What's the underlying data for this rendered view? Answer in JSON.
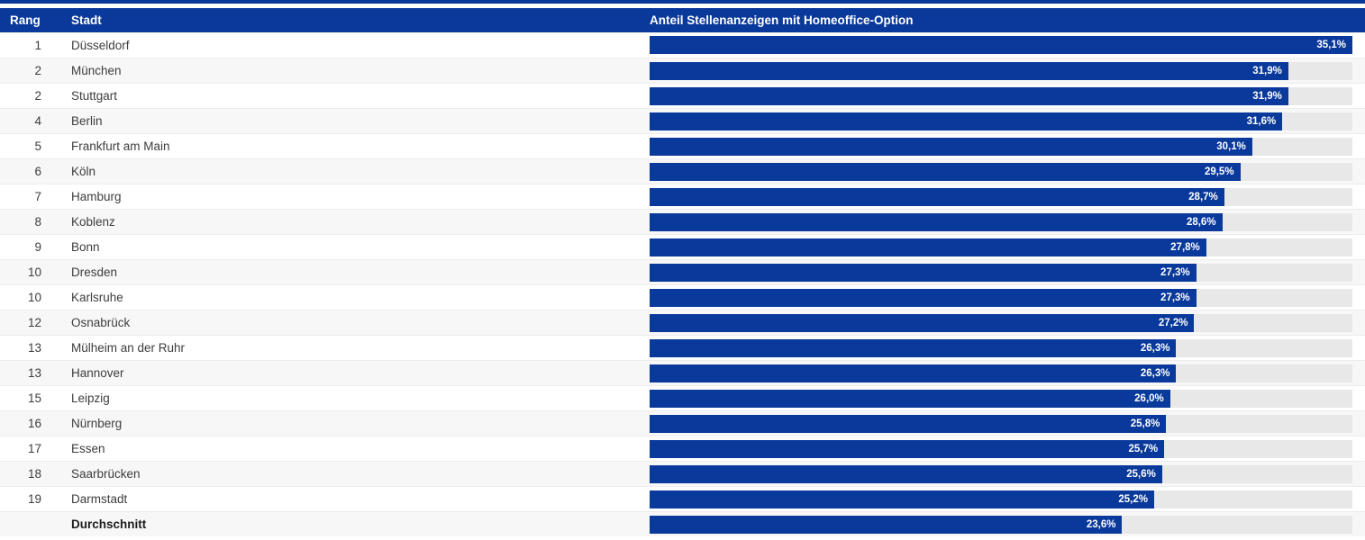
{
  "header": {
    "rank_label": "Rang",
    "city_label": "Stadt",
    "share_label": "Anteil Stellenanzeigen mit Homeoffice-Option"
  },
  "colors": {
    "primary_blue": "#09399b",
    "bar_track_gray": "#e8e8e8",
    "alt_row_bg": "#f7f7f7",
    "header_text": "#ffffff",
    "body_text": "#3d3d3d"
  },
  "chart_data": {
    "type": "bar",
    "orientation": "horizontal",
    "title": "Anteil Stellenanzeigen mit Homeoffice-Option",
    "xlim": [
      0,
      35.1
    ],
    "scale_max": 35.1,
    "grid": false,
    "legend": false,
    "categories": [
      "Düsseldorf",
      "München",
      "Stuttgart",
      "Berlin",
      "Frankfurt am Main",
      "Köln",
      "Hamburg",
      "Koblenz",
      "Bonn",
      "Dresden",
      "Karlsruhe",
      "Osnabrück",
      "Mülheim an der Ruhr",
      "Hannover",
      "Leipzig",
      "Nürnberg",
      "Essen",
      "Saarbrücken",
      "Darmstadt"
    ],
    "ranks": [
      "1",
      "2",
      "2",
      "4",
      "5",
      "6",
      "7",
      "8",
      "9",
      "10",
      "10",
      "12",
      "13",
      "13",
      "15",
      "16",
      "17",
      "18",
      "19"
    ],
    "values": [
      35.1,
      31.9,
      31.9,
      31.6,
      30.1,
      29.5,
      28.7,
      28.6,
      27.8,
      27.3,
      27.3,
      27.2,
      26.3,
      26.3,
      26.0,
      25.8,
      25.7,
      25.6,
      25.2
    ],
    "value_labels": [
      "35,1%",
      "31,9%",
      "31,9%",
      "31,6%",
      "30,1%",
      "29,5%",
      "28,7%",
      "28,6%",
      "27,8%",
      "27,3%",
      "27,3%",
      "27,2%",
      "26,3%",
      "26,3%",
      "26,0%",
      "25,8%",
      "25,7%",
      "25,6%",
      "25,2%"
    ],
    "average": {
      "label": "Durchschnitt",
      "value": 23.6,
      "display": "23,6%"
    }
  },
  "table": {
    "rows": [
      {
        "rank": "1",
        "city": "Düsseldorf",
        "value": 35.1,
        "display": "35,1%",
        "average": false
      },
      {
        "rank": "2",
        "city": "München",
        "value": 31.9,
        "display": "31,9%",
        "average": false
      },
      {
        "rank": "2",
        "city": "Stuttgart",
        "value": 31.9,
        "display": "31,9%",
        "average": false
      },
      {
        "rank": "4",
        "city": "Berlin",
        "value": 31.6,
        "display": "31,6%",
        "average": false
      },
      {
        "rank": "5",
        "city": "Frankfurt am Main",
        "value": 30.1,
        "display": "30,1%",
        "average": false
      },
      {
        "rank": "6",
        "city": "Köln",
        "value": 29.5,
        "display": "29,5%",
        "average": false
      },
      {
        "rank": "7",
        "city": "Hamburg",
        "value": 28.7,
        "display": "28,7%",
        "average": false
      },
      {
        "rank": "8",
        "city": "Koblenz",
        "value": 28.6,
        "display": "28,6%",
        "average": false
      },
      {
        "rank": "9",
        "city": "Bonn",
        "value": 27.8,
        "display": "27,8%",
        "average": false
      },
      {
        "rank": "10",
        "city": "Dresden",
        "value": 27.3,
        "display": "27,3%",
        "average": false
      },
      {
        "rank": "10",
        "city": "Karlsruhe",
        "value": 27.3,
        "display": "27,3%",
        "average": false
      },
      {
        "rank": "12",
        "city": "Osnabrück",
        "value": 27.2,
        "display": "27,2%",
        "average": false
      },
      {
        "rank": "13",
        "city": "Mülheim an der Ruhr",
        "value": 26.3,
        "display": "26,3%",
        "average": false
      },
      {
        "rank": "13",
        "city": "Hannover",
        "value": 26.3,
        "display": "26,3%",
        "average": false
      },
      {
        "rank": "15",
        "city": "Leipzig",
        "value": 26.0,
        "display": "26,0%",
        "average": false
      },
      {
        "rank": "16",
        "city": "Nürnberg",
        "value": 25.8,
        "display": "25,8%",
        "average": false
      },
      {
        "rank": "17",
        "city": "Essen",
        "value": 25.7,
        "display": "25,7%",
        "average": false
      },
      {
        "rank": "18",
        "city": "Saarbrücken",
        "value": 25.6,
        "display": "25,6%",
        "average": false
      },
      {
        "rank": "19",
        "city": "Darmstadt",
        "value": 25.2,
        "display": "25,2%",
        "average": false
      },
      {
        "rank": "",
        "city": "Durchschnitt",
        "value": 23.6,
        "display": "23,6%",
        "average": true
      }
    ]
  }
}
